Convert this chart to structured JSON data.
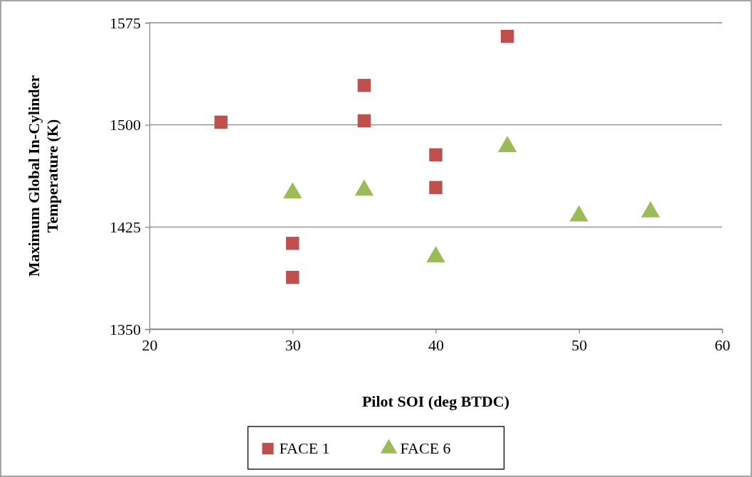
{
  "chart_data": {
    "type": "scatter",
    "xlabel": "Pilot SOI (deg BTDC)",
    "ylabel": "Maximum Global In-Cylinder Temperature (K)",
    "xlim": [
      20,
      60
    ],
    "xticks": [
      20,
      30,
      40,
      50,
      60
    ],
    "ylim": [
      1350,
      1575
    ],
    "yticks": [
      1350,
      1425,
      1500,
      1575
    ],
    "grid": "y",
    "legend": "bottom",
    "series": [
      {
        "name": "FACE 1",
        "color": "#c0504d",
        "marker": "square",
        "x": [
          25,
          30,
          30,
          35,
          35,
          40,
          40,
          45
        ],
        "values": [
          1502,
          1413,
          1388,
          1529,
          1503,
          1478,
          1454,
          1565
        ]
      },
      {
        "name": "FACE 6",
        "color": "#9bbb59",
        "marker": "triangle",
        "x": [
          30,
          35,
          40,
          45,
          50,
          55
        ],
        "values": [
          1450,
          1452,
          1403,
          1484,
          1433,
          1436
        ]
      }
    ]
  }
}
